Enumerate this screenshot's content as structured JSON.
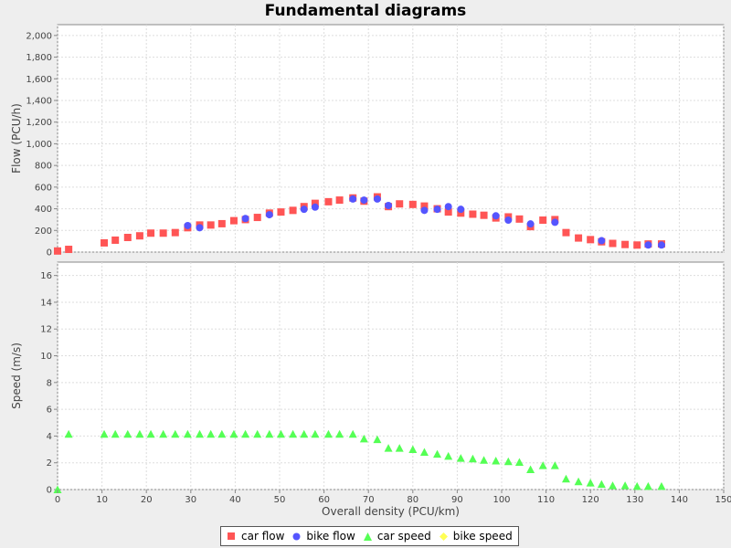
{
  "chart_data": {
    "type": "scatter",
    "title": "Fundamental diagrams",
    "xlabel": "Overall density (PCU/km)",
    "xlim": [
      0,
      150
    ],
    "xticks": [
      0,
      10,
      20,
      30,
      40,
      50,
      60,
      70,
      80,
      90,
      100,
      110,
      120,
      130,
      140,
      150
    ],
    "grid": true,
    "legend_position": "bottom-center",
    "panels": [
      {
        "ylabel": "Flow (PCU/h)",
        "ylim": [
          0,
          2100
        ],
        "yticks": [
          0,
          200,
          400,
          600,
          800,
          1000,
          1200,
          1400,
          1600,
          1800,
          2000
        ],
        "ytick_labels": [
          "0",
          "200",
          "400",
          "600",
          "800",
          "1,000",
          "1,200",
          "1,400",
          "1,600",
          "1,800",
          "2,000"
        ],
        "series": [
          {
            "name": "car flow",
            "marker": "square",
            "color": "#ff5555",
            "x": [
              0,
              2.5,
              10.5,
              13,
              15.8,
              18.5,
              21,
              23.8,
              26.5,
              29.3,
              32,
              34.5,
              37,
              39.7,
              42.3,
              45,
              47.7,
              50.3,
              53,
              55.5,
              58,
              61,
              63.5,
              66.5,
              69,
              72,
              74.5,
              77,
              80,
              82.6,
              85.5,
              88,
              90.8,
              93.5,
              96,
              98.7,
              101.5,
              104,
              106.5,
              109.3,
              112,
              114.5,
              117.3,
              120,
              122.5,
              125,
              127.8,
              130.5,
              133,
              136
            ],
            "y": [
              10,
              25,
              85,
              110,
              135,
              150,
              175,
              175,
              180,
              225,
              250,
              250,
              262,
              290,
              300,
              320,
              360,
              370,
              385,
              420,
              450,
              465,
              480,
              500,
              470,
              510,
              420,
              445,
              440,
              425,
              400,
              370,
              360,
              350,
              340,
              315,
              325,
              305,
              235,
              295,
              300,
              180,
              130,
              115,
              95,
              80,
              70,
              65,
              75,
              75
            ]
          },
          {
            "name": "bike flow",
            "marker": "circle",
            "color": "#5555ff",
            "x": [
              29.3,
              32,
              42.3,
              47.7,
              55.5,
              58,
              66.5,
              69,
              72,
              74.5,
              82.6,
              85.5,
              88,
              90.8,
              98.7,
              101.5,
              106.5,
              112,
              122.5,
              133,
              136
            ],
            "y": [
              245,
              225,
              310,
              345,
              395,
              415,
              490,
              480,
              490,
              430,
              385,
              395,
              420,
              395,
              335,
              295,
              260,
              275,
              105,
              65,
              65
            ]
          }
        ]
      },
      {
        "ylabel": "Speed (m/s)",
        "ylim": [
          0,
          17
        ],
        "yticks": [
          0,
          2,
          4,
          6,
          8,
          10,
          12,
          14,
          16
        ],
        "ytick_labels": [
          "0",
          "2",
          "4",
          "6",
          "8",
          "10",
          "12",
          "14",
          "16"
        ],
        "series": [
          {
            "name": "car speed",
            "marker": "triangle",
            "color": "#55ff55",
            "x": [
              0,
              2.5,
              10.5,
              13,
              15.8,
              18.5,
              21,
              23.8,
              26.5,
              29.3,
              32,
              34.5,
              37,
              39.7,
              42.3,
              45,
              47.7,
              50.3,
              53,
              55.5,
              58,
              61,
              63.5,
              66.5,
              69,
              72,
              74.5,
              77,
              80,
              82.6,
              85.5,
              88,
              90.8,
              93.5,
              96,
              98.7,
              101.5,
              104,
              106.5,
              109.3,
              112,
              114.5,
              117.3,
              120,
              122.5,
              125,
              127.8,
              130.5,
              133,
              136
            ],
            "y": [
              0,
              4.15,
              4.15,
              4.15,
              4.15,
              4.15,
              4.15,
              4.15,
              4.15,
              4.15,
              4.15,
              4.15,
              4.15,
              4.15,
              4.15,
              4.15,
              4.15,
              4.15,
              4.15,
              4.15,
              4.15,
              4.15,
              4.15,
              4.15,
              3.8,
              3.75,
              3.1,
              3.1,
              3.0,
              2.8,
              2.65,
              2.5,
              2.35,
              2.3,
              2.2,
              2.15,
              2.1,
              2.05,
              1.5,
              1.8,
              1.8,
              0.8,
              0.6,
              0.5,
              0.4,
              0.3,
              0.3,
              0.25,
              0.25,
              0.25
            ]
          },
          {
            "name": "bike speed",
            "marker": "diamond",
            "color": "#ffff55",
            "x": [],
            "y": []
          }
        ]
      }
    ]
  }
}
